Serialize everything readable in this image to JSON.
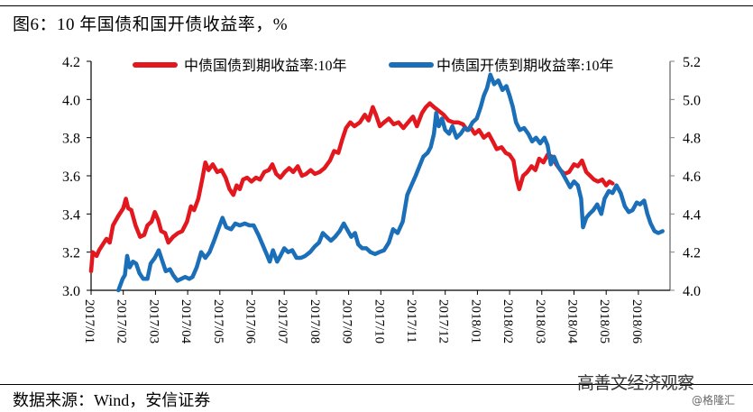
{
  "header": {
    "title": "图6：10 年国债和国开债收益率，%"
  },
  "footer": {
    "source": "数据来源：Wind，安信证券",
    "watermark": "高善文经济观察",
    "watermark_sub": "@格隆汇"
  },
  "colors": {
    "series_red": "#E3171E",
    "series_blue": "#1A6FB8",
    "axis_left": "#000000",
    "axis_right": "#808080"
  },
  "chart_data": {
    "type": "line",
    "title": "图6：10 年国债和国开债收益率，%",
    "xlabel": "",
    "ylabel": "",
    "x_categories": [
      "2017/01",
      "2017/02",
      "2017/03",
      "2017/04",
      "2017/05",
      "2017/06",
      "2017/07",
      "2017/08",
      "2017/09",
      "2017/10",
      "2017/11",
      "2017/12",
      "2018/01",
      "2018/02",
      "2018/03",
      "2018/04",
      "2018/05",
      "2018/06"
    ],
    "left_axis": {
      "ylim": [
        3.0,
        4.2
      ],
      "ticks": [
        "3.0",
        "3.2",
        "3.4",
        "3.6",
        "3.8",
        "4.0",
        "4.2"
      ]
    },
    "right_axis": {
      "ylim": [
        4.0,
        5.2
      ],
      "ticks": [
        "4.0",
        "4.2",
        "4.4",
        "4.6",
        "4.8",
        "5.0",
        "5.2"
      ]
    },
    "grid": false,
    "legend_position": "top",
    "series": [
      {
        "name": "中债国债到期收益率:10年",
        "axis": "left",
        "color": "#E3171E",
        "points": [
          [
            0.0,
            3.1
          ],
          [
            0.05,
            3.2
          ],
          [
            0.17,
            3.18
          ],
          [
            0.25,
            3.21
          ],
          [
            0.4,
            3.25
          ],
          [
            0.48,
            3.27
          ],
          [
            0.58,
            3.25
          ],
          [
            0.68,
            3.34
          ],
          [
            0.85,
            3.39
          ],
          [
            1.0,
            3.43
          ],
          [
            1.08,
            3.48
          ],
          [
            1.15,
            3.43
          ],
          [
            1.25,
            3.42
          ],
          [
            1.38,
            3.34
          ],
          [
            1.52,
            3.28
          ],
          [
            1.65,
            3.29
          ],
          [
            1.75,
            3.34
          ],
          [
            1.88,
            3.36
          ],
          [
            1.98,
            3.41
          ],
          [
            2.08,
            3.37
          ],
          [
            2.18,
            3.31
          ],
          [
            2.3,
            3.3
          ],
          [
            2.4,
            3.25
          ],
          [
            2.55,
            3.28
          ],
          [
            2.7,
            3.3
          ],
          [
            2.83,
            3.31
          ],
          [
            2.98,
            3.36
          ],
          [
            3.1,
            3.44
          ],
          [
            3.2,
            3.42
          ],
          [
            3.33,
            3.48
          ],
          [
            3.45,
            3.58
          ],
          [
            3.55,
            3.67
          ],
          [
            3.65,
            3.63
          ],
          [
            3.78,
            3.66
          ],
          [
            3.92,
            3.62
          ],
          [
            4.05,
            3.63
          ],
          [
            4.18,
            3.59
          ],
          [
            4.3,
            3.53
          ],
          [
            4.42,
            3.5
          ],
          [
            4.52,
            3.55
          ],
          [
            4.62,
            3.53
          ],
          [
            4.72,
            3.58
          ],
          [
            4.85,
            3.59
          ],
          [
            4.98,
            3.57
          ],
          [
            5.12,
            3.59
          ],
          [
            5.25,
            3.58
          ],
          [
            5.38,
            3.62
          ],
          [
            5.52,
            3.63
          ],
          [
            5.63,
            3.66
          ],
          [
            5.75,
            3.61
          ],
          [
            5.88,
            3.59
          ],
          [
            6.02,
            3.62
          ],
          [
            6.15,
            3.64
          ],
          [
            6.28,
            3.62
          ],
          [
            6.42,
            3.65
          ],
          [
            6.55,
            3.6
          ],
          [
            6.68,
            3.61
          ],
          [
            6.82,
            3.63
          ],
          [
            6.95,
            3.61
          ],
          [
            7.1,
            3.62
          ],
          [
            7.25,
            3.64
          ],
          [
            7.42,
            3.68
          ],
          [
            7.55,
            3.73
          ],
          [
            7.68,
            3.72
          ],
          [
            7.8,
            3.79
          ],
          [
            7.92,
            3.85
          ],
          [
            8.05,
            3.88
          ],
          [
            8.18,
            3.86
          ],
          [
            8.35,
            3.88
          ],
          [
            8.5,
            3.92
          ],
          [
            8.62,
            3.89
          ],
          [
            8.75,
            3.96
          ],
          [
            8.85,
            3.92
          ],
          [
            8.97,
            3.86
          ],
          [
            9.1,
            3.88
          ],
          [
            9.25,
            3.9
          ],
          [
            9.4,
            3.87
          ],
          [
            9.55,
            3.88
          ],
          [
            9.7,
            3.85
          ],
          [
            9.85,
            3.88
          ],
          [
            10.0,
            3.91
          ],
          [
            10.12,
            3.86
          ],
          [
            10.28,
            3.93
          ],
          [
            10.4,
            3.96
          ],
          [
            10.52,
            3.98
          ],
          [
            10.65,
            3.96
          ],
          [
            10.8,
            3.94
          ],
          [
            10.95,
            3.92
          ],
          [
            11.1,
            3.89
          ],
          [
            11.25,
            3.88
          ],
          [
            11.4,
            3.88
          ],
          [
            11.55,
            3.87
          ],
          [
            11.68,
            3.84
          ],
          [
            11.8,
            3.85
          ],
          [
            11.92,
            3.82
          ],
          [
            12.05,
            3.84
          ],
          [
            12.2,
            3.8
          ],
          [
            12.35,
            3.82
          ],
          [
            12.48,
            3.78
          ],
          [
            12.6,
            3.74
          ],
          [
            12.75,
            3.75
          ],
          [
            12.88,
            3.72
          ],
          [
            13.0,
            3.71
          ],
          [
            13.12,
            3.68
          ],
          [
            13.22,
            3.58
          ],
          [
            13.3,
            3.53
          ],
          [
            13.42,
            3.6
          ],
          [
            13.55,
            3.62
          ],
          [
            13.68,
            3.65
          ],
          [
            13.8,
            3.63
          ],
          [
            13.92,
            3.69
          ],
          [
            14.05,
            3.67
          ],
          [
            14.18,
            3.71
          ],
          [
            14.32,
            3.7
          ],
          [
            14.45,
            3.66
          ],
          [
            14.58,
            3.63
          ],
          [
            14.7,
            3.61
          ],
          [
            14.85,
            3.62
          ],
          [
            15.0,
            3.66
          ],
          [
            15.12,
            3.65
          ],
          [
            15.25,
            3.68
          ],
          [
            15.38,
            3.62
          ],
          [
            15.5,
            3.6
          ],
          [
            15.62,
            3.58
          ],
          [
            15.75,
            3.57
          ],
          [
            15.88,
            3.58
          ],
          [
            16.0,
            3.55
          ],
          [
            16.1,
            3.57
          ],
          [
            16.2,
            3.56
          ]
        ]
      },
      {
        "name": "中债国开债到期收益率:10年",
        "axis": "right",
        "color": "#1A6FB8",
        "points": [
          [
            0.85,
            4.0
          ],
          [
            0.98,
            4.06
          ],
          [
            1.05,
            4.08
          ],
          [
            1.12,
            4.18
          ],
          [
            1.2,
            4.12
          ],
          [
            1.3,
            4.15
          ],
          [
            1.4,
            4.14
          ],
          [
            1.5,
            4.09
          ],
          [
            1.62,
            4.06
          ],
          [
            1.75,
            4.06
          ],
          [
            1.85,
            4.14
          ],
          [
            1.98,
            4.17
          ],
          [
            2.1,
            4.21
          ],
          [
            2.2,
            4.16
          ],
          [
            2.32,
            4.1
          ],
          [
            2.45,
            4.11
          ],
          [
            2.55,
            4.08
          ],
          [
            2.68,
            4.05
          ],
          [
            2.8,
            4.06
          ],
          [
            2.92,
            4.07
          ],
          [
            3.05,
            4.06
          ],
          [
            3.15,
            4.07
          ],
          [
            3.28,
            4.12
          ],
          [
            3.42,
            4.2
          ],
          [
            3.55,
            4.17
          ],
          [
            3.68,
            4.2
          ],
          [
            3.82,
            4.26
          ],
          [
            3.95,
            4.32
          ],
          [
            4.08,
            4.38
          ],
          [
            4.2,
            4.33
          ],
          [
            4.35,
            4.32
          ],
          [
            4.48,
            4.35
          ],
          [
            4.62,
            4.34
          ],
          [
            4.78,
            4.35
          ],
          [
            4.92,
            4.34
          ],
          [
            5.05,
            4.34
          ],
          [
            5.2,
            4.29
          ],
          [
            5.35,
            4.23
          ],
          [
            5.45,
            4.19
          ],
          [
            5.55,
            4.15
          ],
          [
            5.65,
            4.21
          ],
          [
            5.78,
            4.15
          ],
          [
            5.88,
            4.18
          ],
          [
            6.0,
            4.22
          ],
          [
            6.12,
            4.2
          ],
          [
            6.25,
            4.21
          ],
          [
            6.38,
            4.17
          ],
          [
            6.52,
            4.17
          ],
          [
            6.65,
            4.18
          ],
          [
            6.8,
            4.2
          ],
          [
            6.95,
            4.23
          ],
          [
            7.08,
            4.25
          ],
          [
            7.2,
            4.3
          ],
          [
            7.32,
            4.28
          ],
          [
            7.45,
            4.26
          ],
          [
            7.58,
            4.28
          ],
          [
            7.72,
            4.31
          ],
          [
            7.85,
            4.35
          ],
          [
            7.95,
            4.32
          ],
          [
            8.08,
            4.28
          ],
          [
            8.2,
            4.3
          ],
          [
            8.3,
            4.24
          ],
          [
            8.42,
            4.22
          ],
          [
            8.55,
            4.22
          ],
          [
            8.68,
            4.2
          ],
          [
            8.82,
            4.19
          ],
          [
            8.95,
            4.2
          ],
          [
            9.1,
            4.21
          ],
          [
            9.25,
            4.25
          ],
          [
            9.38,
            4.32
          ],
          [
            9.52,
            4.3
          ],
          [
            9.68,
            4.36
          ],
          [
            9.82,
            4.5
          ],
          [
            9.95,
            4.55
          ],
          [
            10.08,
            4.6
          ],
          [
            10.2,
            4.65
          ],
          [
            10.32,
            4.7
          ],
          [
            10.45,
            4.72
          ],
          [
            10.55,
            4.75
          ],
          [
            10.65,
            4.82
          ],
          [
            10.72,
            4.93
          ],
          [
            10.8,
            4.86
          ],
          [
            10.9,
            4.9
          ],
          [
            11.0,
            4.84
          ],
          [
            11.12,
            4.82
          ],
          [
            11.22,
            4.86
          ],
          [
            11.35,
            4.8
          ],
          [
            11.48,
            4.82
          ],
          [
            11.6,
            4.85
          ],
          [
            11.72,
            4.84
          ],
          [
            11.85,
            4.88
          ],
          [
            11.98,
            4.9
          ],
          [
            12.1,
            4.96
          ],
          [
            12.2,
            5.02
          ],
          [
            12.3,
            5.06
          ],
          [
            12.4,
            5.13
          ],
          [
            12.52,
            5.08
          ],
          [
            12.65,
            5.1
          ],
          [
            12.78,
            5.05
          ],
          [
            12.9,
            5.07
          ],
          [
            13.0,
            5.02
          ],
          [
            13.1,
            4.96
          ],
          [
            13.2,
            4.88
          ],
          [
            13.32,
            4.84
          ],
          [
            13.45,
            4.85
          ],
          [
            13.58,
            4.82
          ],
          [
            13.7,
            4.78
          ],
          [
            13.82,
            4.8
          ],
          [
            13.95,
            4.77
          ],
          [
            14.08,
            4.8
          ],
          [
            14.18,
            4.76
          ],
          [
            14.28,
            4.66
          ],
          [
            14.38,
            4.7
          ],
          [
            14.5,
            4.65
          ],
          [
            14.62,
            4.62
          ],
          [
            14.75,
            4.58
          ],
          [
            14.88,
            4.54
          ],
          [
            15.0,
            4.57
          ],
          [
            15.12,
            4.55
          ],
          [
            15.22,
            4.48
          ],
          [
            15.28,
            4.33
          ],
          [
            15.38,
            4.38
          ],
          [
            15.48,
            4.4
          ],
          [
            15.6,
            4.42
          ],
          [
            15.72,
            4.45
          ],
          [
            15.85,
            4.4
          ],
          [
            15.95,
            4.48
          ],
          [
            16.08,
            4.52
          ],
          [
            16.2,
            4.51
          ],
          [
            16.32,
            4.55
          ],
          [
            16.45,
            4.51
          ],
          [
            16.58,
            4.44
          ],
          [
            16.7,
            4.41
          ],
          [
            16.82,
            4.42
          ],
          [
            16.95,
            4.46
          ],
          [
            17.05,
            4.45
          ],
          [
            17.18,
            4.47
          ],
          [
            17.28,
            4.4
          ],
          [
            17.38,
            4.35
          ],
          [
            17.5,
            4.31
          ],
          [
            17.62,
            4.3
          ],
          [
            17.75,
            4.31
          ]
        ]
      }
    ]
  }
}
